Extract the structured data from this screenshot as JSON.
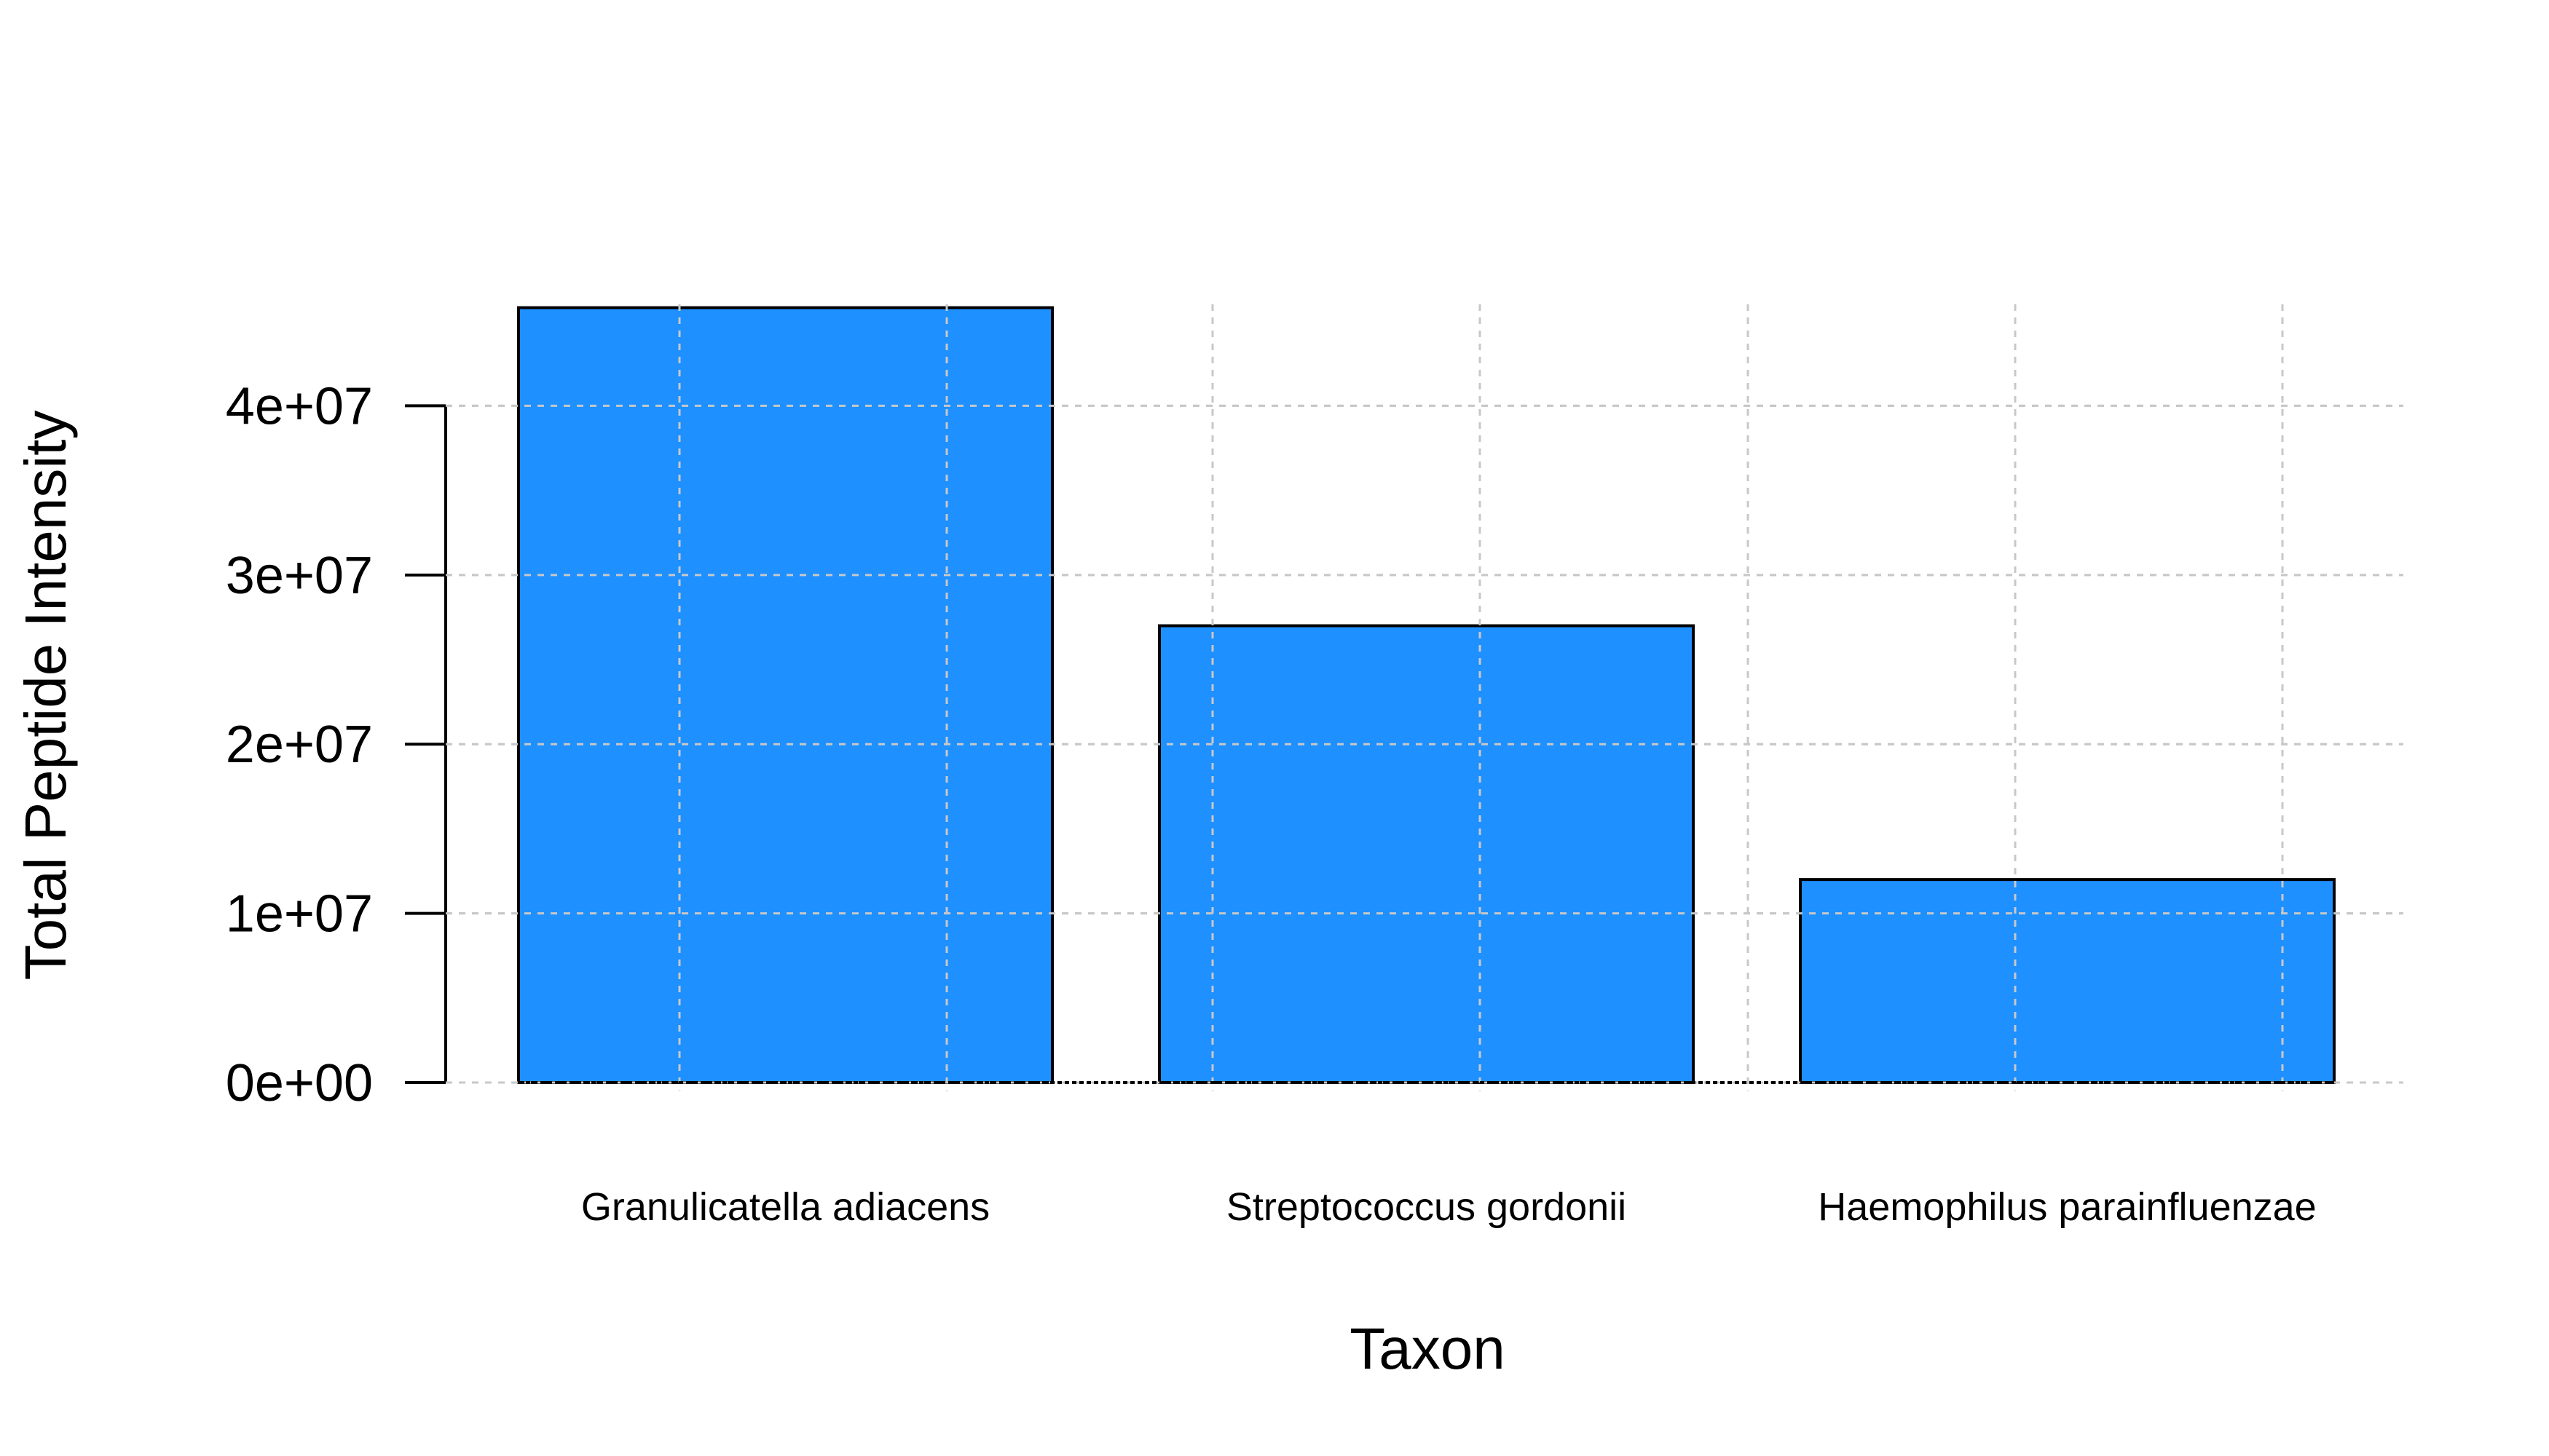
{
  "chart_data": {
    "type": "bar",
    "categories": [
      "Granulicatella adiacens",
      "Streptococcus gordonii",
      "Haemophilus parainfluenzae"
    ],
    "values": [
      45800000,
      27000000,
      12000000
    ],
    "xlabel": "Taxon",
    "ylabel": "Total Peptide Intensity",
    "ylim": [
      0,
      46000000
    ],
    "yticks": [
      0,
      10000000,
      20000000,
      30000000,
      40000000
    ],
    "ytick_labels": [
      "0e+00",
      "1e+07",
      "2e+07",
      "3e+07",
      "4e+07"
    ],
    "grid": true,
    "bar_color": "#1E90FF",
    "bar_border_color": "#000000",
    "grid_color": "#c8c8c8"
  }
}
